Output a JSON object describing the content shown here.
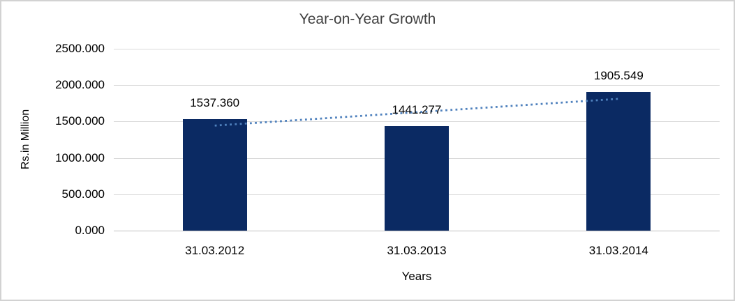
{
  "chart_data": {
    "type": "bar",
    "title": "Year-on-Year Growth",
    "categories": [
      "31.03.2012",
      "31.03.2013",
      "31.03.2014"
    ],
    "values": [
      1537.36,
      1441.277,
      1905.549
    ],
    "data_labels": [
      "1537.360",
      "1441.277",
      "1905.549"
    ],
    "xlabel": "Years",
    "ylabel": "Rs.in Million",
    "ylim": [
      0,
      2500
    ],
    "ytick_interval": 500,
    "ytick_labels": [
      "0.000",
      "500.000",
      "1000.000",
      "1500.000",
      "2000.000",
      "2500.000"
    ],
    "grid": true,
    "legend": "none",
    "trendline": {
      "type": "linear",
      "style": "dotted",
      "start_value": 1444,
      "end_value": 1812
    },
    "colors": {
      "bar": "#0b2a63",
      "trendline": "#4f81bd",
      "gridline": "#d9d9d9",
      "axis_line": "#bfbfbf",
      "frame_border": "#d2d2d2",
      "title_text": "#3f3f3f",
      "text": "#000000",
      "background": "#ffffff"
    }
  }
}
